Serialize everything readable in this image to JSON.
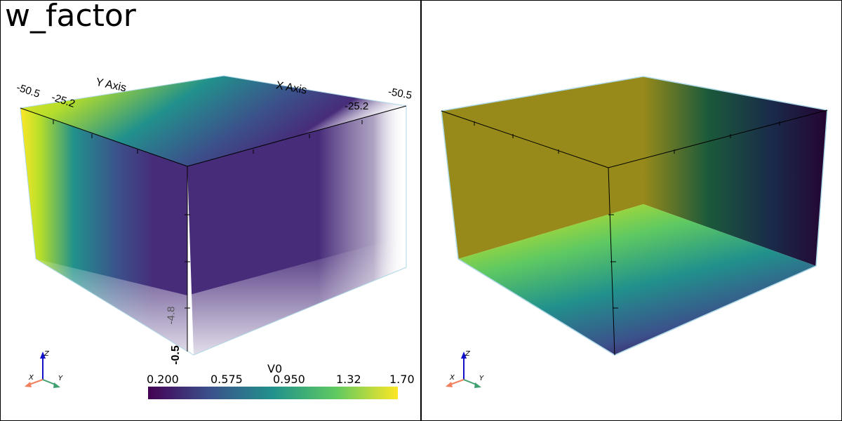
{
  "left_view": {
    "title": "w_factor",
    "axis_labels": {
      "y_axis": "Y Axis",
      "x_axis": "X Axis"
    },
    "axis_ticks": {
      "top_left": "-50.5",
      "top_left_2": "-25.2",
      "top_right_2": "-25.2",
      "top_right": "-50.5",
      "vertical_mid": "-4.8",
      "vertical_bottom": "-0.5"
    },
    "orientation": {
      "x": "X",
      "y": "Y",
      "z": "Z"
    },
    "colorbar": {
      "title": "V0",
      "ticks": [
        "0.200",
        "0.575",
        "0.950",
        "1.32",
        "1.70"
      ],
      "colormap": "viridis"
    }
  },
  "right_view": {
    "orientation": {
      "x": "X",
      "y": "Y",
      "z": "Z"
    }
  },
  "colors": {
    "viridis_dark": "#440154",
    "viridis_purple": "#472c7a",
    "viridis_teal": "#21918c",
    "viridis_yellow": "#fde725",
    "bbox_edge": "#add8e6",
    "olive_wall": "#978a1a"
  }
}
